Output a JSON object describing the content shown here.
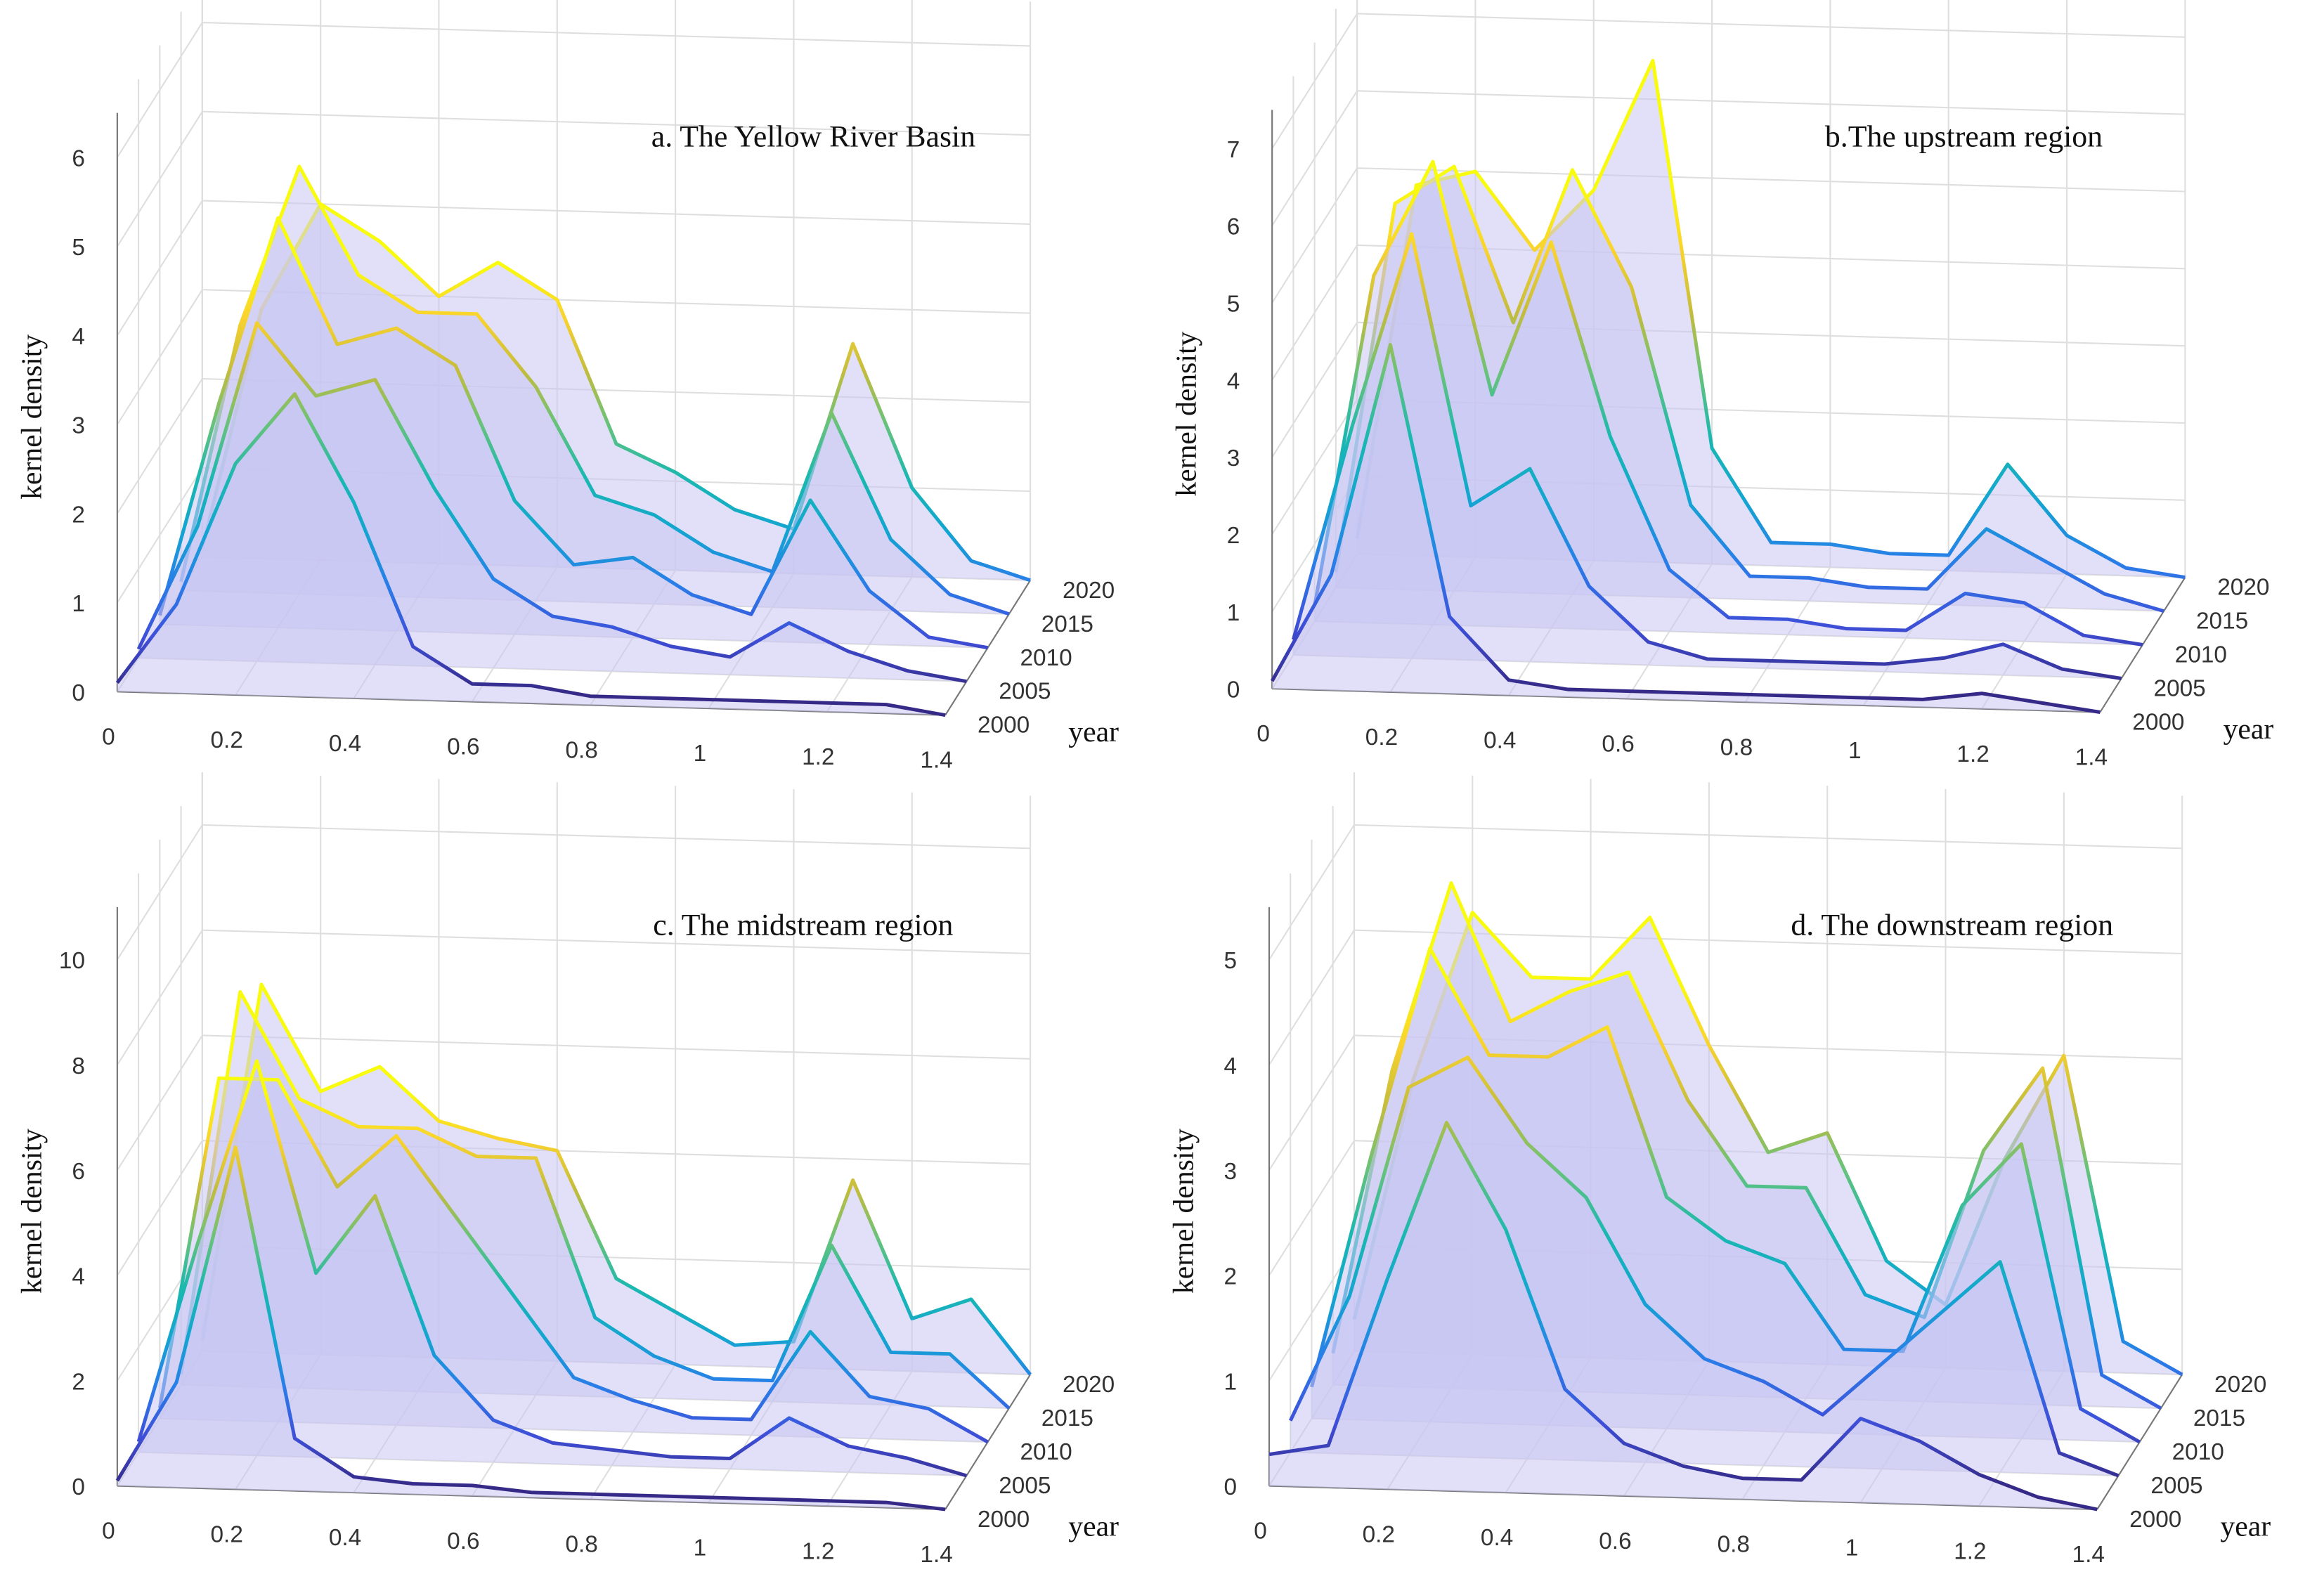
{
  "chart_data": [
    {
      "type": "surface3d",
      "title": "a. The Yellow River Basin",
      "zlabel": "kernel density",
      "ylabel": "year",
      "colormap": "parula",
      "x": [
        0,
        0.1,
        0.2,
        0.3,
        0.4,
        0.5,
        0.6,
        0.7,
        0.8,
        0.9,
        1,
        1.1,
        1.2,
        1.3,
        1.4
      ],
      "xlim": [
        0,
        1.4
      ],
      "xticks": [
        0,
        0.2,
        0.4,
        0.6,
        0.8,
        1,
        1.2,
        1.4
      ],
      "ylim": [
        2000,
        2020
      ],
      "yticks": [
        2000,
        2005,
        2010,
        2015,
        2020
      ],
      "zlim": [
        0,
        6.5
      ],
      "zticks": [
        0,
        1,
        2,
        3,
        4,
        5,
        6
      ],
      "grid": true,
      "series": [
        {
          "y": 2000,
          "values": [
            0.1,
            1.0,
            2.6,
            3.4,
            2.2,
            0.6,
            0.2,
            0.2,
            0.1,
            0.1,
            0.1,
            0.1,
            0.1,
            0.1,
            0.0
          ]
        },
        {
          "y": 2005,
          "values": [
            0.1,
            1.5,
            3.8,
            3.0,
            3.2,
            2.0,
            1.0,
            0.6,
            0.5,
            0.3,
            0.2,
            0.6,
            0.3,
            0.1,
            0.0
          ]
        },
        {
          "y": 2010,
          "values": [
            0.1,
            2.5,
            4.6,
            3.2,
            3.4,
            3.0,
            1.5,
            0.8,
            0.9,
            0.5,
            0.3,
            1.6,
            0.6,
            0.1,
            0.0
          ]
        },
        {
          "y": 2015,
          "values": [
            0.1,
            3.0,
            4.8,
            3.6,
            3.2,
            3.2,
            2.4,
            1.2,
            1.0,
            0.6,
            0.4,
            2.2,
            0.8,
            0.2,
            0.0
          ]
        },
        {
          "y": 2020,
          "values": [
            0.1,
            2.8,
            4.0,
            3.6,
            3.0,
            3.4,
            3.0,
            1.4,
            1.1,
            0.7,
            0.5,
            2.6,
            1.0,
            0.2,
            0.0
          ]
        }
      ]
    },
    {
      "type": "surface3d",
      "title": "b.The upstream region",
      "zlabel": "kernel density",
      "ylabel": "year",
      "colormap": "parula",
      "x": [
        0,
        0.1,
        0.2,
        0.3,
        0.4,
        0.5,
        0.6,
        0.7,
        0.8,
        0.9,
        1,
        1.1,
        1.2,
        1.3,
        1.4
      ],
      "xlim": [
        0,
        1.4
      ],
      "xticks": [
        0,
        0.2,
        0.4,
        0.6,
        0.8,
        1,
        1.2,
        1.4
      ],
      "ylim": [
        2000,
        2020
      ],
      "yticks": [
        2000,
        2005,
        2010,
        2015,
        2020
      ],
      "zlim": [
        0,
        7.5
      ],
      "zticks": [
        0,
        1,
        2,
        3,
        4,
        5,
        6,
        7
      ],
      "grid": true,
      "series": [
        {
          "y": 2000,
          "values": [
            0.1,
            1.5,
            4.5,
            1.0,
            0.2,
            0.1,
            0.1,
            0.1,
            0.1,
            0.1,
            0.1,
            0.1,
            0.2,
            0.1,
            0.0
          ]
        },
        {
          "y": 2005,
          "values": [
            0.2,
            3.0,
            5.5,
            2.0,
            2.5,
            1.0,
            0.3,
            0.1,
            0.1,
            0.1,
            0.1,
            0.2,
            0.4,
            0.1,
            0.0
          ]
        },
        {
          "y": 2010,
          "values": [
            0.2,
            4.5,
            6.0,
            3.0,
            5.0,
            2.5,
            0.8,
            0.2,
            0.2,
            0.1,
            0.1,
            0.6,
            0.5,
            0.1,
            0.0
          ]
        },
        {
          "y": 2015,
          "values": [
            0.2,
            5.0,
            5.5,
            3.5,
            5.5,
            4.0,
            1.2,
            0.3,
            0.3,
            0.2,
            0.2,
            1.0,
            0.6,
            0.2,
            0.0
          ]
        },
        {
          "y": 2020,
          "values": [
            0.2,
            4.8,
            5.0,
            4.0,
            4.8,
            6.5,
            1.5,
            0.3,
            0.3,
            0.2,
            0.2,
            1.4,
            0.5,
            0.1,
            0.0
          ]
        }
      ]
    },
    {
      "type": "surface3d",
      "title": "c. The midstream region",
      "zlabel": "kernel density",
      "ylabel": "year",
      "colormap": "parula",
      "x": [
        0,
        0.1,
        0.2,
        0.3,
        0.4,
        0.5,
        0.6,
        0.7,
        0.8,
        0.9,
        1,
        1.1,
        1.2,
        1.3,
        1.4
      ],
      "xlim": [
        0,
        1.4
      ],
      "xticks": [
        0,
        0.2,
        0.4,
        0.6,
        0.8,
        1,
        1.2,
        1.4
      ],
      "ylim": [
        2000,
        2020
      ],
      "yticks": [
        2000,
        2005,
        2010,
        2015,
        2020
      ],
      "zlim": [
        0,
        11
      ],
      "zticks": [
        0,
        2,
        4,
        6,
        8,
        10
      ],
      "grid": true,
      "series": [
        {
          "y": 2000,
          "values": [
            0.1,
            2.0,
            6.5,
            1.0,
            0.3,
            0.2,
            0.2,
            0.1,
            0.1,
            0.1,
            0.1,
            0.1,
            0.1,
            0.1,
            0.0
          ]
        },
        {
          "y": 2005,
          "values": [
            0.2,
            4.0,
            7.5,
            3.5,
            5.0,
            2.0,
            0.8,
            0.4,
            0.3,
            0.2,
            0.2,
            1.0,
            0.5,
            0.3,
            0.0
          ]
        },
        {
          "y": 2010,
          "values": [
            0.2,
            6.5,
            6.5,
            4.5,
            5.5,
            4.0,
            2.5,
            1.0,
            0.6,
            0.3,
            0.3,
            2.0,
            0.8,
            0.6,
            0.0
          ]
        },
        {
          "y": 2015,
          "values": [
            0.2,
            7.5,
            5.5,
            5.0,
            5.0,
            4.5,
            4.5,
            1.5,
            0.8,
            0.4,
            0.4,
            3.0,
            1.0,
            1.0,
            0.0
          ]
        },
        {
          "y": 2020,
          "values": [
            0.2,
            7.0,
            5.0,
            5.5,
            4.5,
            4.2,
            4.0,
            1.6,
            1.0,
            0.4,
            0.5,
            3.6,
            1.0,
            1.4,
            0.0
          ]
        }
      ]
    },
    {
      "type": "surface3d",
      "title": "d. The downstream region",
      "zlabel": "kernel density",
      "ylabel": "year",
      "colormap": "parula",
      "x": [
        0,
        0.1,
        0.2,
        0.3,
        0.4,
        0.5,
        0.6,
        0.7,
        0.8,
        0.9,
        1,
        1.1,
        1.2,
        1.3,
        1.4
      ],
      "xlim": [
        0,
        1.4
      ],
      "xticks": [
        0,
        0.2,
        0.4,
        0.6,
        0.8,
        1,
        1.2,
        1.4
      ],
      "ylim": [
        2000,
        2020
      ],
      "yticks": [
        2000,
        2005,
        2010,
        2015,
        2020
      ],
      "zlim": [
        0,
        5.5
      ],
      "zticks": [
        0,
        1,
        2,
        3,
        4,
        5
      ],
      "grid": true,
      "series": [
        {
          "y": 2000,
          "values": [
            0.3,
            0.4,
            2.0,
            3.5,
            2.5,
            1.0,
            0.5,
            0.3,
            0.2,
            0.2,
            0.8,
            0.6,
            0.3,
            0.1,
            0.0
          ]
        },
        {
          "y": 2005,
          "values": [
            0.3,
            1.5,
            3.5,
            3.8,
            3.0,
            2.5,
            1.5,
            1.0,
            0.8,
            0.5,
            1.0,
            1.5,
            2.0,
            0.2,
            0.0
          ]
        },
        {
          "y": 2010,
          "values": [
            0.3,
            2.5,
            4.5,
            3.5,
            3.5,
            3.8,
            2.2,
            1.8,
            1.6,
            0.8,
            0.8,
            2.2,
            2.8,
            0.3,
            0.0
          ]
        },
        {
          "y": 2015,
          "values": [
            0.3,
            3.0,
            4.8,
            3.5,
            3.8,
            4.0,
            2.8,
            2.0,
            2.0,
            1.0,
            0.8,
            2.4,
            3.2,
            0.3,
            0.0
          ]
        },
        {
          "y": 2020,
          "values": [
            0.3,
            2.6,
            4.2,
            3.6,
            3.6,
            4.2,
            3.0,
            2.0,
            2.2,
            1.0,
            0.6,
            2.0,
            3.0,
            0.3,
            0.0
          ]
        }
      ]
    }
  ]
}
